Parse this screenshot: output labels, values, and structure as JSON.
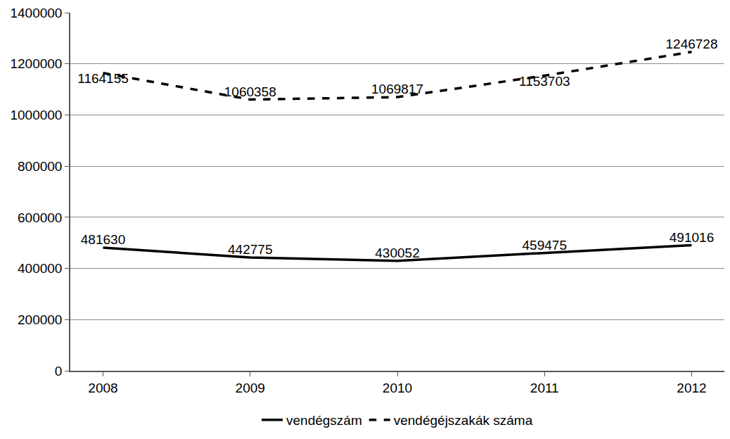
{
  "chart_data": {
    "type": "line",
    "categories": [
      "2008",
      "2009",
      "2010",
      "2011",
      "2012"
    ],
    "series": [
      {
        "name": "vendégszám",
        "color": "#000000",
        "line_style": "solid",
        "values": [
          481630,
          442775,
          430052,
          459475,
          491016
        ]
      },
      {
        "name": "vendégéjszakák száma",
        "color": "#000000",
        "line_style": "dashed",
        "values": [
          1164155,
          1060358,
          1069817,
          1153703,
          1246728
        ]
      }
    ],
    "ylim": [
      0,
      1400000
    ],
    "yticks": [
      0,
      200000,
      400000,
      600000,
      800000,
      1000000,
      1200000,
      1400000
    ],
    "grid": true,
    "legend": "bottom",
    "data_labels": true
  }
}
